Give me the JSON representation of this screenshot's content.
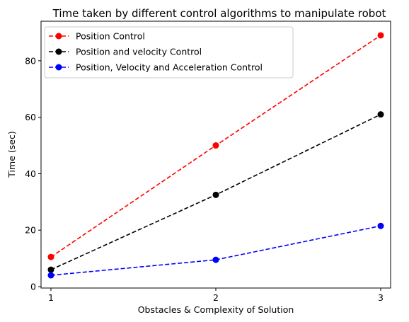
{
  "chart_data": {
    "type": "line",
    "title": "Time taken by different control algorithms to manipulate robot",
    "xlabel": "Obstacles & Complexity of Solution",
    "ylabel": "Time (sec)",
    "x": [
      1,
      2,
      3
    ],
    "x_ticks": [
      "1",
      "2",
      "3"
    ],
    "y_ticks": [
      "0",
      "20",
      "40",
      "60",
      "80"
    ],
    "xlim": [
      0.94,
      3.06
    ],
    "ylim": [
      -0.5,
      94
    ],
    "grid": false,
    "legend_position": "top-left",
    "series": [
      {
        "name": "Position Control",
        "values": [
          10.5,
          50,
          89
        ],
        "color": "#ff0000",
        "style": "dashed",
        "marker": "circle"
      },
      {
        "name": "Position and velocity Control",
        "values": [
          6,
          32.5,
          61
        ],
        "color": "#000000",
        "style": "dashed",
        "marker": "circle"
      },
      {
        "name": "Position, Velocity and Acceleration Control",
        "values": [
          4,
          9.5,
          21.5
        ],
        "color": "#0000ff",
        "style": "dashed",
        "marker": "circle"
      }
    ]
  }
}
